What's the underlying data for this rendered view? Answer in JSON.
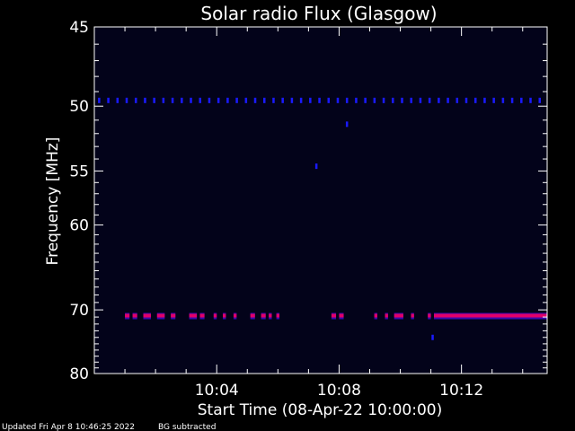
{
  "colors": {
    "background": "#000000",
    "plot_background": "#03031a",
    "axis": "#ffffff",
    "text": "#ffffff",
    "weak_signal": "#1a1aff",
    "strong_signal": "#e0006a",
    "strong_core": "#ff2255"
  },
  "chart_data": {
    "type": "heatmap",
    "title": "Solar radio Flux (Glasgow)",
    "xlabel": "Start Time (08-Apr-22 10:00:00)",
    "ylabel": "Frequency [MHz]",
    "x_unit": "minutes after 10:00:00",
    "xlim": [
      0,
      14.8
    ],
    "ylim": [
      45,
      80
    ],
    "y_ticks": [
      {
        "value": 45,
        "label": "45"
      },
      {
        "value": 50,
        "label": "50"
      },
      {
        "value": 55,
        "label": "55"
      },
      {
        "value": 60,
        "label": "60"
      },
      {
        "value": 70,
        "label": "70"
      },
      {
        "value": 80,
        "label": "80"
      }
    ],
    "x_ticks": [
      {
        "value": 4,
        "label": "10:04"
      },
      {
        "value": 8,
        "label": "10:08"
      },
      {
        "value": 12,
        "label": "10:12"
      }
    ],
    "series": [
      {
        "kind": "weak",
        "frequency_mhz": 49.6,
        "times_min": [
          0.15,
          0.45,
          0.75,
          1.05,
          1.35,
          1.65,
          1.95,
          2.25,
          2.55,
          2.85,
          3.15,
          3.45,
          3.75,
          4.05,
          4.35,
          4.65,
          4.95,
          5.25,
          5.55,
          5.85,
          6.15,
          6.45,
          6.75,
          7.05,
          7.35,
          7.65,
          7.95,
          8.25,
          8.55,
          8.85,
          9.15,
          9.45,
          9.75,
          10.05,
          10.35,
          10.65,
          10.95,
          11.25,
          11.55,
          11.85,
          12.15,
          12.45,
          12.75,
          13.05,
          13.35,
          13.65,
          13.95,
          14.25,
          14.55
        ]
      },
      {
        "kind": "weak",
        "frequency_mhz": 51.3,
        "times_min": [
          8.25
        ]
      },
      {
        "kind": "weak",
        "frequency_mhz": 54.6,
        "times_min": [
          7.25
        ]
      },
      {
        "kind": "weak",
        "frequency_mhz": 74.0,
        "times_min": [
          11.05
        ]
      },
      {
        "kind": "strong",
        "frequency_mhz": 70.8,
        "segments_min": [
          [
            1.0,
            1.15
          ],
          [
            1.25,
            1.4
          ],
          [
            1.6,
            1.85
          ],
          [
            2.05,
            2.3
          ],
          [
            2.5,
            2.65
          ],
          [
            3.1,
            3.35
          ],
          [
            3.45,
            3.6
          ],
          [
            3.9,
            4.0
          ],
          [
            4.2,
            4.3
          ],
          [
            4.55,
            4.65
          ],
          [
            5.1,
            5.25
          ],
          [
            5.45,
            5.6
          ],
          [
            5.7,
            5.8
          ],
          [
            5.95,
            6.05
          ],
          [
            7.75,
            7.9
          ],
          [
            8.0,
            8.15
          ],
          [
            9.15,
            9.25
          ],
          [
            9.5,
            9.6
          ],
          [
            9.8,
            10.1
          ],
          [
            10.35,
            10.45
          ],
          [
            10.9,
            11.0
          ],
          [
            11.1,
            14.8
          ]
        ]
      }
    ]
  },
  "footer": {
    "updated": "Updated Fri Apr  8 10:46:25 2022",
    "bg_note": "BG subtracted"
  }
}
